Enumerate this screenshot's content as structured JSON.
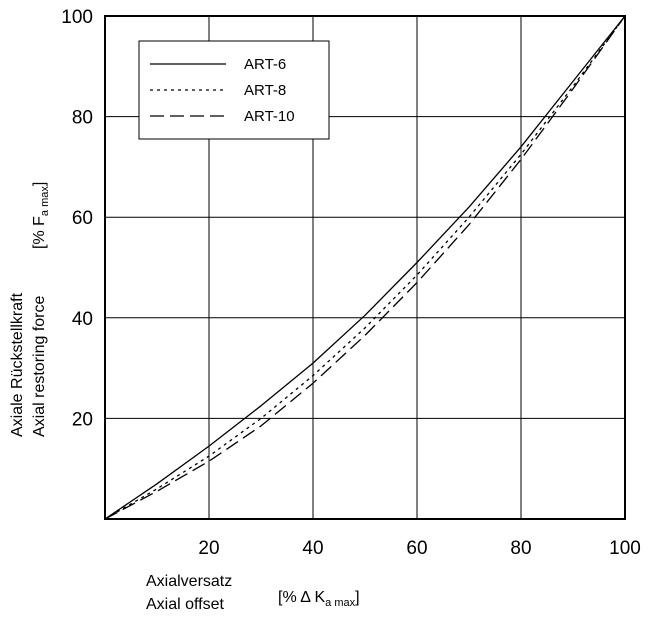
{
  "chart_data": {
    "type": "line",
    "xlabel": "Axialversatz",
    "xlabel_en": "Axial offset",
    "xunit_prefix": "[% Δ K",
    "xunit_sub": "a max",
    "xunit_suffix": "]",
    "ylabel": "Axiale Rückstellkraft",
    "ylabel_en": "Axial restoring force",
    "yunit_prefix": "[% F",
    "yunit_sub": "a max",
    "yunit_suffix": "]",
    "xlim": [
      0,
      100
    ],
    "ylim": [
      0,
      100
    ],
    "x_ticks": [
      "20",
      "40",
      "60",
      "80",
      "100"
    ],
    "y_ticks": [
      "20",
      "40",
      "60",
      "80",
      "100"
    ],
    "grid": true,
    "legend_position": "top-left",
    "series": [
      {
        "name": "ART-6",
        "style": "solid",
        "x": [
          0,
          10,
          20,
          30,
          40,
          50,
          60,
          70,
          80,
          90,
          100
        ],
        "y": [
          0,
          7,
          14.5,
          22.5,
          31,
          40.5,
          51,
          62,
          74,
          87,
          100
        ]
      },
      {
        "name": "ART-8",
        "style": "dotted",
        "x": [
          0,
          10,
          20,
          30,
          40,
          50,
          60,
          70,
          80,
          90,
          100
        ],
        "y": [
          0,
          6,
          12.5,
          20,
          28.5,
          38,
          48.5,
          60,
          72.5,
          86,
          100
        ]
      },
      {
        "name": "ART-10",
        "style": "dashed",
        "x": [
          0,
          10,
          20,
          30,
          40,
          50,
          60,
          70,
          80,
          90,
          100
        ],
        "y": [
          0,
          5.5,
          11.5,
          18.5,
          27,
          36.5,
          47,
          58.5,
          71.5,
          85.5,
          100
        ]
      }
    ]
  }
}
